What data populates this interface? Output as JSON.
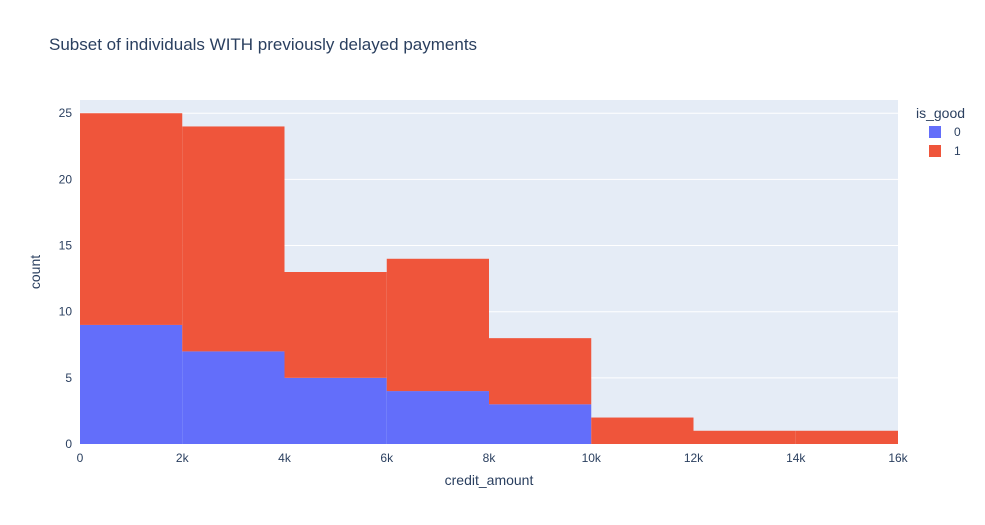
{
  "chart_data": {
    "type": "bar",
    "mode": "stacked-histogram",
    "title": "Subset of individuals WITH previously delayed payments",
    "xlabel": "credit_amount",
    "ylabel": "count",
    "xlim": [
      0,
      16000
    ],
    "ylim": [
      0,
      26
    ],
    "x_ticks": [
      0,
      2000,
      4000,
      6000,
      8000,
      10000,
      12000,
      14000,
      16000
    ],
    "x_tick_labels": [
      "0",
      "2k",
      "4k",
      "6k",
      "8k",
      "10k",
      "12k",
      "14k",
      "16k"
    ],
    "y_ticks": [
      0,
      5,
      10,
      15,
      20,
      25
    ],
    "y_tick_labels": [
      "0",
      "5",
      "10",
      "15",
      "20",
      "25"
    ],
    "bins": [
      [
        0,
        2000
      ],
      [
        2000,
        4000
      ],
      [
        4000,
        6000
      ],
      [
        6000,
        8000
      ],
      [
        8000,
        10000
      ],
      [
        10000,
        12000
      ],
      [
        12000,
        14000
      ],
      [
        14000,
        16000
      ]
    ],
    "legend_title": "is_good",
    "legend_position": "top-right",
    "background": "#e5ecf6",
    "grid": true,
    "series": [
      {
        "name": "0",
        "color": "#636efa",
        "values": [
          9,
          7,
          5,
          4,
          3,
          0,
          0,
          0
        ]
      },
      {
        "name": "1",
        "color": "#ef553b",
        "values": [
          16,
          17,
          8,
          10,
          5,
          2,
          1,
          1
        ]
      }
    ]
  }
}
